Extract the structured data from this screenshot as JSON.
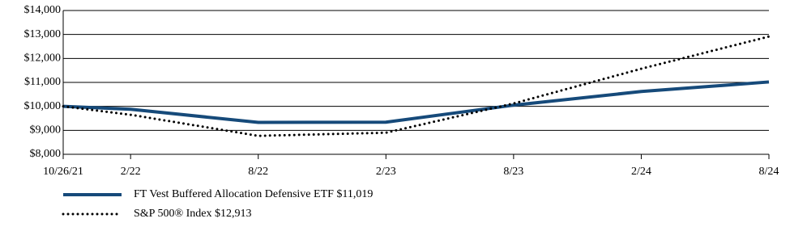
{
  "chart_data": {
    "type": "line",
    "categories": [
      "10/26/21",
      "2/22",
      "8/22",
      "2/23",
      "8/23",
      "2/24",
      "8/24"
    ],
    "series": [
      {
        "name": "FT Vest Buffered Allocation Defensive ETF $11,019",
        "color": "#164a7a",
        "style": "solid",
        "values": [
          10000,
          9880,
          9330,
          9340,
          10050,
          10620,
          11019
        ]
      },
      {
        "name": "S&P 500® Index $12,913",
        "color": "#000000",
        "style": "dotted",
        "values": [
          10000,
          9650,
          8770,
          8900,
          10120,
          11570,
          12913
        ]
      }
    ],
    "ylim": [
      8000,
      14000
    ],
    "yticks": [
      {
        "value": 8000,
        "label": "$8,000"
      },
      {
        "value": 9000,
        "label": "$9,000"
      },
      {
        "value": 10000,
        "label": "$10,000"
      },
      {
        "value": 11000,
        "label": "$11,000"
      },
      {
        "value": 12000,
        "label": "$12,000"
      },
      {
        "value": 13000,
        "label": "$13,000"
      },
      {
        "value": 14000,
        "label": "$14,000"
      }
    ],
    "grid": true
  }
}
